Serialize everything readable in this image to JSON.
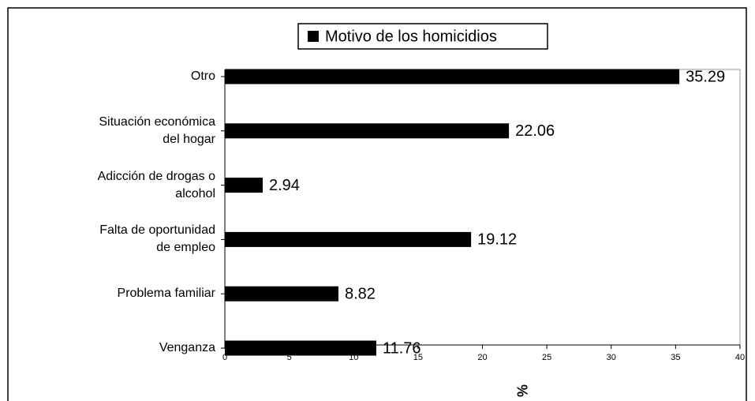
{
  "chart_data": {
    "type": "hbar",
    "legend_title": "Motivo de los homicidios",
    "categories": [
      "Otro",
      "Situación económica\ndel hogar",
      "Adicción de drogas o\nalcohol",
      "Falta de oportunidad\nde empleo",
      "Problema familiar",
      "Venganza"
    ],
    "values": [
      35.29,
      22.06,
      2.94,
      19.12,
      8.82,
      11.76
    ],
    "color": "#000000",
    "x_label": "%",
    "xlim": [
      0,
      40
    ],
    "xticks": [
      0,
      5,
      10,
      15,
      20,
      25,
      30,
      35,
      40
    ]
  }
}
